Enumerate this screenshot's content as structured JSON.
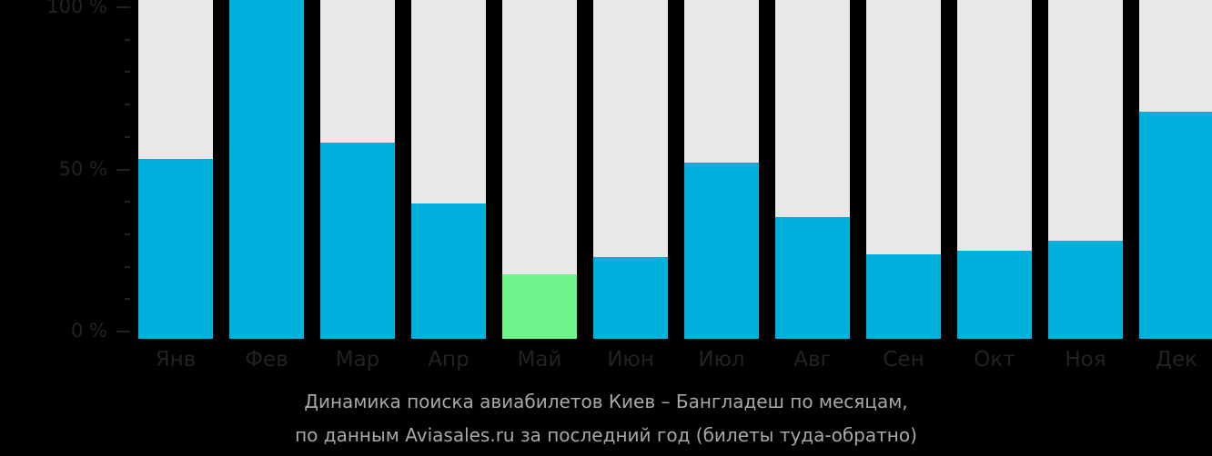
{
  "chart_data": {
    "type": "bar",
    "title": "Динамика поиска авиабилетов Киев – Бангладеш по месяцам,",
    "subtitle": "по данным Aviasales.ru за последний год (билеты туда-обратно)",
    "categories": [
      "Янв",
      "Фев",
      "Мар",
      "Апр",
      "Май",
      "Июн",
      "Июл",
      "Авг",
      "Сен",
      "Окт",
      "Ноя",
      "Дек"
    ],
    "values": [
      53,
      100,
      58,
      40,
      19,
      24,
      52,
      36,
      25,
      26,
      29,
      67
    ],
    "highlight_index": 4,
    "xlabel": "",
    "ylabel": "",
    "ylim": [
      0,
      100
    ],
    "yticks": [
      "0 %",
      "50 %",
      "100 %"
    ],
    "colors": {
      "bar": "#00b0dd",
      "highlight": "#6ef28a",
      "background_bar": "#e8e8e8",
      "background": "#000000",
      "axis_text": "#222222",
      "caption": "#a8a8a8"
    },
    "grid": false,
    "legend": null
  }
}
